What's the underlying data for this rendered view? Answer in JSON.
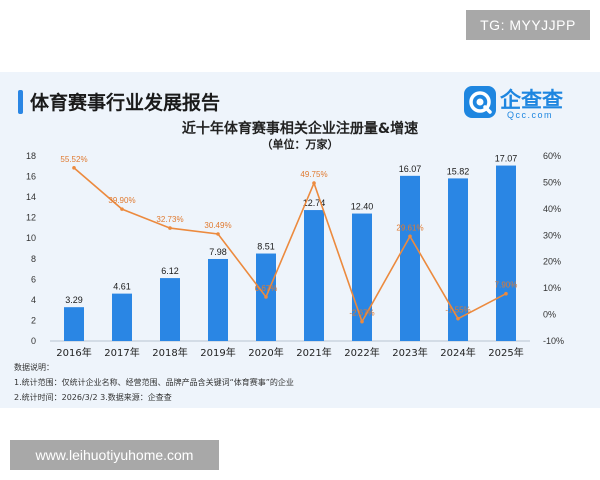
{
  "watermark_top": "TG: MYYJJPP",
  "watermark_bottom": "www.leihuotiyuhome.com",
  "report_title": "体育赛事行业发展报告",
  "logo": {
    "name": "企查查",
    "sub": "Qcc.com",
    "color": "#1e86e0"
  },
  "notes": {
    "heading": "数据说明：",
    "line1": "1.统计范围：仅统计企业名称、经营范围、品牌产品含关键词“体育赛事”的企业",
    "line2": "2.统计时间：2026/3/2  3.数据来源：企查查"
  },
  "colors": {
    "bar": "#2a86e4",
    "line": "#ec8a3e",
    "bar_label": "#1a1a1a",
    "line_label": "#e07a30"
  },
  "chart_data": {
    "type": "bar",
    "title": "近十年体育赛事相关企业注册量&增速",
    "subtitle": "（单位：万家）",
    "categories": [
      "2016年",
      "2017年",
      "2018年",
      "2019年",
      "2020年",
      "2021年",
      "2022年",
      "2023年",
      "2024年",
      "2025年"
    ],
    "series": [
      {
        "type": "bar",
        "axis": "left",
        "values": [
          3.29,
          4.61,
          6.12,
          7.98,
          8.51,
          12.74,
          12.4,
          16.07,
          15.82,
          17.07
        ],
        "labels": [
          "3.29",
          "4.61",
          "6.12",
          "7.98",
          "8.51",
          "12.74",
          "12.40",
          "16.07",
          "15.82",
          "17.07"
        ]
      },
      {
        "type": "line",
        "axis": "right",
        "values": [
          55.52,
          39.9,
          32.73,
          30.49,
          6.67,
          49.75,
          -2.67,
          29.61,
          -1.55,
          7.9
        ],
        "labels": [
          "55.52%",
          "39.90%",
          "32.73%",
          "30.49%",
          "6.67%",
          "49.75%",
          "-2.67%",
          "29.61%",
          "-1.55%",
          "7.90%"
        ]
      }
    ],
    "y_left": {
      "min": 0,
      "max": 18,
      "ticks": [
        "0",
        "2",
        "4",
        "6",
        "8",
        "10",
        "12",
        "14",
        "16",
        "18"
      ]
    },
    "y_right": {
      "min": -10,
      "max": 60,
      "ticks": [
        "-10%",
        "0%",
        "10%",
        "20%",
        "30%",
        "40%",
        "50%",
        "60%"
      ]
    },
    "grid": false,
    "legend": "none"
  }
}
